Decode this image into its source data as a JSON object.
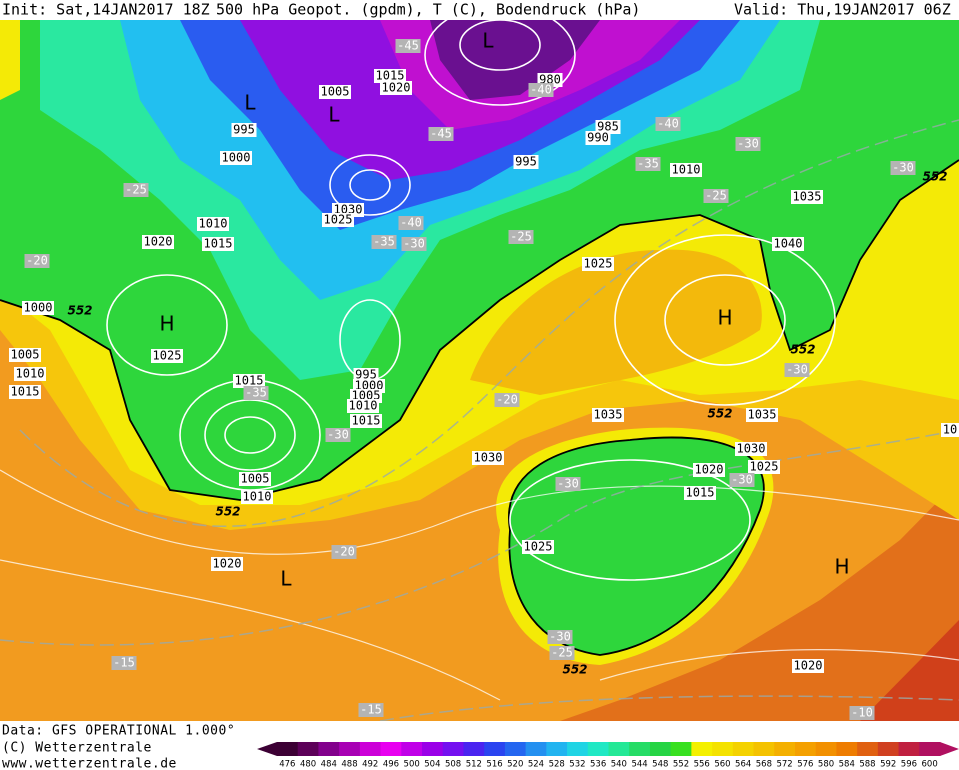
{
  "header": {
    "init": "Init: Sat,14JAN2017 18Z",
    "description": "500 hPa Geopot. (gpdm), T (C), Bodendruck (hPa)",
    "valid": "Valid: Thu,19JAN2017 06Z"
  },
  "footer": {
    "source": "Data: GFS OPERATIONAL 1.000°",
    "copyright": "(C) Wetterzentrale",
    "website": "www.wetterzentrale.de"
  },
  "map": {
    "pressure_labels": [
      "1005",
      "1015",
      "1020",
      "980",
      "995",
      "985",
      "990",
      "1000",
      "995",
      "1010",
      "1035",
      "1030",
      "1025",
      "1010",
      "1020",
      "1015",
      "1040",
      "1025",
      "1000",
      "1025",
      "1005",
      "1010",
      "1015",
      "1015",
      "995",
      "1000",
      "1005",
      "1010",
      "1015",
      "1035",
      "1035",
      "1030",
      "1025",
      "1020",
      "1015",
      "1030",
      "1005",
      "1010",
      "1025",
      "1020",
      "1020",
      "10"
    ],
    "temperature_labels": [
      "-45",
      "-40",
      "-45",
      "-40",
      "-35",
      "-30",
      "-25",
      "-25",
      "-30",
      "-40",
      "-35",
      "-30",
      "-25",
      "-20",
      "-35",
      "-30",
      "-20",
      "-30",
      "-30",
      "-30",
      "-20",
      "-30",
      "-25",
      "-15",
      "-15",
      "-10"
    ],
    "contour_labels": [
      "552",
      "552",
      "552",
      "552",
      "552",
      "552"
    ],
    "centers": [
      "L",
      "L",
      "L",
      "H",
      "H",
      "L",
      "H"
    ]
  },
  "colorbar": {
    "ticks": [
      476,
      480,
      484,
      488,
      492,
      496,
      500,
      504,
      508,
      512,
      516,
      520,
      524,
      528,
      532,
      536,
      540,
      544,
      548,
      552,
      556,
      560,
      564,
      568,
      572,
      576,
      580,
      584,
      588,
      592,
      596,
      600
    ],
    "colors": [
      "#3c0034",
      "#5c0058",
      "#82008c",
      "#a800b4",
      "#cc00d8",
      "#e800f0",
      "#c000e8",
      "#9a00e8",
      "#7410f0",
      "#4a24f0",
      "#2a44f0",
      "#2466f0",
      "#2490f0",
      "#22b4f0",
      "#20d4e4",
      "#20e8c4",
      "#24e896",
      "#26dc66",
      "#26d444",
      "#38e020",
      "#f4f000",
      "#f4e200",
      "#f4d200",
      "#f4c200",
      "#f4b000",
      "#f4a000",
      "#f29000",
      "#ee7c00",
      "#e06010",
      "#d04020",
      "#c02040",
      "#b01060"
    ]
  }
}
